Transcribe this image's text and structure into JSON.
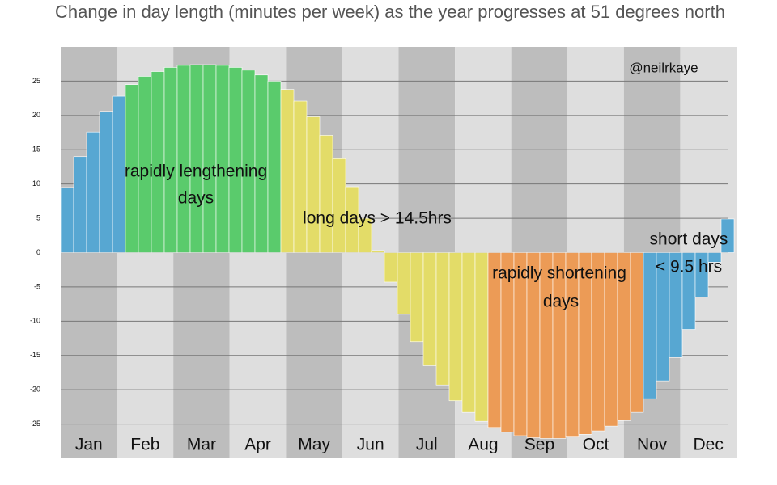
{
  "chart_data": {
    "type": "bar",
    "title": "Change in day length (minutes per week) as the year progresses at 51 degrees north",
    "credit": "@neilrkaye",
    "months": [
      "Jan",
      "Feb",
      "Mar",
      "Apr",
      "May",
      "Jun",
      "Jul",
      "Aug",
      "Sep",
      "Oct",
      "Nov",
      "Dec"
    ],
    "values": [
      9.5,
      14,
      17.6,
      20.6,
      22.8,
      24.5,
      25.7,
      26.4,
      27,
      27.3,
      27.4,
      27.4,
      27.3,
      27,
      26.6,
      25.9,
      25,
      23.8,
      22.1,
      19.8,
      17.1,
      13.7,
      9.6,
      5,
      0.3,
      -4.3,
      -9,
      -13,
      -16.5,
      -19.3,
      -21.6,
      -23.3,
      -24.6,
      -25.5,
      -26.2,
      -26.7,
      -27,
      -27.1,
      -27.1,
      -26.9,
      -26.5,
      -26,
      -25.3,
      -24.5,
      -23.3,
      -21.3,
      -18.7,
      -15.3,
      -11.2,
      -6.5,
      -1.4,
      4.9
    ],
    "colors": [
      "#57a7d2",
      "#57a7d2",
      "#57a7d2",
      "#57a7d2",
      "#57a7d2",
      "#5acb6c",
      "#5acb6c",
      "#5acb6c",
      "#5acb6c",
      "#5acb6c",
      "#5acb6c",
      "#5acb6c",
      "#5acb6c",
      "#5acb6c",
      "#5acb6c",
      "#5acb6c",
      "#5acb6c",
      "#e3dc68",
      "#e3dc68",
      "#e3dc68",
      "#e3dc68",
      "#e3dc68",
      "#e3dc68",
      "#e3dc68",
      "#e3dc68",
      "#e3dc68",
      "#e3dc68",
      "#e3dc68",
      "#e3dc68",
      "#e3dc68",
      "#e3dc68",
      "#e3dc68",
      "#e3dc68",
      "#ec9b56",
      "#ec9b56",
      "#ec9b56",
      "#ec9b56",
      "#ec9b56",
      "#ec9b56",
      "#ec9b56",
      "#ec9b56",
      "#ec9b56",
      "#ec9b56",
      "#ec9b56",
      "#ec9b56",
      "#57a7d2",
      "#57a7d2",
      "#57a7d2",
      "#57a7d2",
      "#57a7d2",
      "#57a7d2",
      "#57a7d2"
    ],
    "annotations": [
      "rapidly lengthening",
      "days",
      "long days > 14.5hrs",
      "rapidly shortening",
      "days",
      "short days",
      "< 9.5 hrs"
    ],
    "ylim": [
      -30,
      30
    ],
    "yticks": [
      -25,
      -20,
      -15,
      -10,
      -5,
      0,
      5,
      10,
      15,
      20,
      25
    ],
    "grid": true
  }
}
